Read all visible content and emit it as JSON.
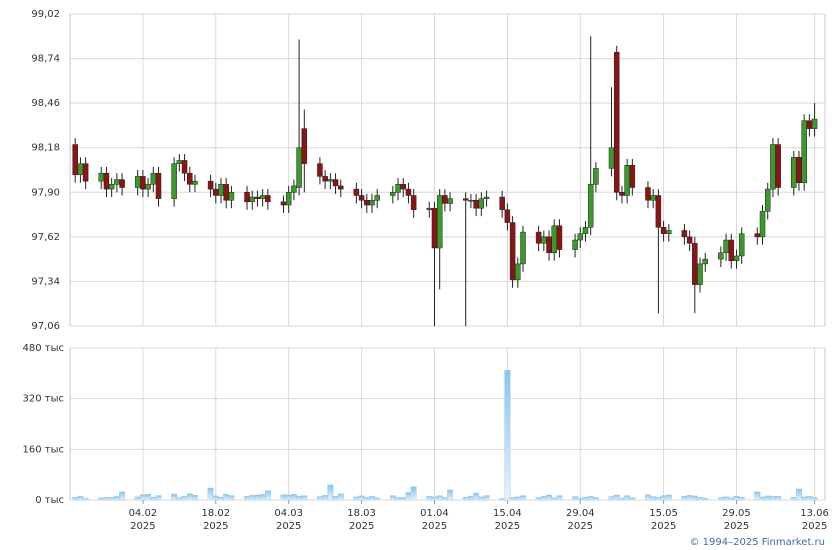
{
  "chart_data": {
    "type": "candlestick",
    "x": [
      "2025-01-22",
      "2025-01-23",
      "2025-01-24",
      "2025-01-27",
      "2025-01-28",
      "2025-01-29",
      "2025-01-30",
      "2025-01-31",
      "2025-02-03",
      "2025-02-04",
      "2025-02-05",
      "2025-02-06",
      "2025-02-07",
      "2025-02-10",
      "2025-02-11",
      "2025-02-12",
      "2025-02-13",
      "2025-02-14",
      "2025-02-17",
      "2025-02-18",
      "2025-02-19",
      "2025-02-20",
      "2025-02-21",
      "2025-02-24",
      "2025-02-25",
      "2025-02-26",
      "2025-02-27",
      "2025-02-28",
      "2025-03-03",
      "2025-03-04",
      "2025-03-05",
      "2025-03-06",
      "2025-03-07",
      "2025-03-10",
      "2025-03-11",
      "2025-03-12",
      "2025-03-13",
      "2025-03-14",
      "2025-03-17",
      "2025-03-18",
      "2025-03-19",
      "2025-03-20",
      "2025-03-21",
      "2025-03-24",
      "2025-03-25",
      "2025-03-26",
      "2025-03-27",
      "2025-03-28",
      "2025-03-31",
      "2025-04-01",
      "2025-04-02",
      "2025-04-03",
      "2025-04-04",
      "2025-04-07",
      "2025-04-08",
      "2025-04-09",
      "2025-04-10",
      "2025-04-11",
      "2025-04-14",
      "2025-04-15",
      "2025-04-16",
      "2025-04-17",
      "2025-04-18",
      "2025-04-21",
      "2025-04-22",
      "2025-04-23",
      "2025-04-24",
      "2025-04-25",
      "2025-04-28",
      "2025-04-29",
      "2025-04-30",
      "2025-05-01",
      "2025-05-02",
      "2025-05-05",
      "2025-05-06",
      "2025-05-07",
      "2025-05-08",
      "2025-05-09",
      "2025-05-12",
      "2025-05-13",
      "2025-05-14",
      "2025-05-15",
      "2025-05-16",
      "2025-05-19",
      "2025-05-20",
      "2025-05-21",
      "2025-05-22",
      "2025-05-23",
      "2025-05-26",
      "2025-05-27",
      "2025-05-28",
      "2025-05-29",
      "2025-05-30",
      "2025-06-02",
      "2025-06-03",
      "2025-06-04",
      "2025-06-05",
      "2025-06-06",
      "2025-06-09",
      "2025-06-10",
      "2025-06-11",
      "2025-06-12",
      "2025-06-13"
    ],
    "open": [
      98.2,
      98.01,
      98.08,
      97.97,
      98.02,
      97.92,
      97.95,
      97.98,
      97.93,
      98.0,
      97.92,
      97.95,
      98.02,
      97.86,
      98.08,
      98.1,
      98.02,
      97.95,
      97.97,
      97.92,
      97.88,
      97.95,
      97.85,
      97.9,
      97.84,
      97.87,
      97.86,
      97.88,
      97.84,
      97.82,
      97.9,
      97.93,
      98.3,
      98.08,
      98.0,
      97.97,
      97.98,
      97.94,
      97.92,
      97.88,
      97.85,
      97.82,
      97.85,
      97.88,
      97.9,
      97.95,
      97.92,
      97.88,
      97.79,
      97.8,
      97.55,
      97.88,
      97.83,
      97.86,
      97.85,
      97.85,
      97.8,
      97.86,
      97.87,
      97.79,
      97.71,
      97.35,
      97.45,
      97.65,
      97.58,
      97.62,
      97.52,
      97.69,
      97.54,
      97.6,
      97.64,
      97.68,
      97.95,
      98.05,
      98.78,
      97.9,
      97.88,
      98.07,
      97.93,
      97.85,
      97.88,
      97.68,
      97.64,
      97.66,
      97.62,
      97.58,
      97.32,
      97.45,
      97.48,
      97.52,
      97.6,
      97.47,
      97.5,
      97.64,
      97.62,
      97.78,
      97.92,
      98.2,
      97.93,
      98.12,
      97.96,
      98.35,
      98.3
    ],
    "high": [
      98.24,
      98.12,
      98.12,
      98.06,
      98.06,
      97.99,
      98.02,
      98.02,
      98.04,
      98.04,
      97.99,
      98.06,
      98.06,
      98.12,
      98.14,
      98.14,
      98.06,
      98.01,
      98.01,
      97.96,
      97.99,
      97.99,
      97.94,
      97.94,
      97.91,
      97.91,
      97.92,
      97.92,
      97.88,
      97.94,
      97.98,
      98.86,
      98.42,
      98.12,
      98.04,
      98.02,
      98.02,
      97.98,
      97.96,
      97.92,
      97.89,
      97.89,
      97.92,
      97.94,
      97.99,
      97.99,
      97.96,
      97.92,
      97.84,
      97.84,
      97.92,
      97.92,
      97.9,
      97.9,
      97.89,
      97.89,
      97.9,
      97.91,
      97.91,
      97.83,
      97.75,
      97.49,
      97.69,
      97.69,
      97.66,
      97.66,
      97.73,
      97.73,
      97.64,
      97.68,
      97.72,
      98.88,
      98.09,
      98.56,
      98.82,
      97.94,
      98.11,
      98.11,
      97.97,
      97.92,
      97.92,
      97.72,
      97.7,
      97.7,
      97.66,
      97.62,
      97.49,
      97.52,
      97.56,
      97.64,
      97.64,
      97.54,
      97.68,
      97.68,
      97.82,
      97.96,
      98.24,
      98.24,
      98.16,
      98.16,
      98.39,
      98.39,
      98.46
    ],
    "low": [
      97.96,
      97.96,
      97.92,
      97.92,
      97.87,
      97.87,
      97.9,
      97.88,
      97.88,
      97.87,
      97.87,
      97.9,
      97.81,
      97.81,
      98.03,
      97.97,
      97.9,
      97.9,
      97.87,
      97.83,
      97.83,
      97.8,
      97.8,
      97.79,
      97.79,
      97.81,
      97.81,
      97.79,
      97.77,
      97.77,
      97.85,
      97.88,
      97.9,
      97.95,
      97.92,
      97.92,
      97.89,
      97.87,
      97.83,
      97.8,
      97.77,
      97.77,
      97.8,
      97.83,
      97.85,
      97.87,
      97.83,
      97.74,
      97.74,
      97.06,
      97.29,
      97.78,
      97.78,
      97.06,
      97.8,
      97.75,
      97.75,
      97.81,
      97.74,
      97.66,
      97.3,
      97.3,
      97.4,
      97.53,
      97.53,
      97.47,
      97.47,
      97.49,
      97.49,
      97.55,
      97.59,
      97.63,
      97.9,
      98.0,
      97.85,
      97.83,
      97.83,
      97.88,
      97.8,
      97.8,
      97.14,
      97.59,
      97.59,
      97.57,
      97.53,
      97.14,
      97.27,
      97.4,
      97.43,
      97.47,
      97.42,
      97.42,
      97.45,
      97.57,
      97.57,
      97.73,
      97.87,
      97.88,
      97.88,
      97.91,
      97.91,
      98.25,
      98.25
    ],
    "close": [
      98.01,
      98.08,
      97.97,
      98.02,
      97.92,
      97.95,
      97.98,
      97.93,
      98.0,
      97.92,
      97.95,
      98.02,
      97.86,
      98.08,
      98.1,
      98.02,
      97.95,
      97.97,
      97.92,
      97.88,
      97.95,
      97.85,
      97.9,
      97.84,
      97.87,
      97.86,
      97.88,
      97.84,
      97.82,
      97.9,
      97.94,
      98.18,
      98.08,
      98.0,
      97.97,
      97.98,
      97.94,
      97.92,
      97.88,
      97.85,
      97.82,
      97.85,
      97.88,
      97.9,
      97.95,
      97.92,
      97.88,
      97.79,
      97.8,
      97.55,
      97.88,
      97.83,
      97.86,
      97.85,
      97.85,
      97.8,
      97.86,
      97.87,
      97.79,
      97.71,
      97.35,
      97.45,
      97.65,
      97.58,
      97.62,
      97.52,
      97.69,
      97.54,
      97.6,
      97.64,
      97.68,
      97.95,
      98.05,
      98.18,
      97.9,
      97.88,
      98.07,
      97.93,
      97.85,
      97.88,
      97.68,
      97.64,
      97.66,
      97.62,
      97.58,
      97.32,
      97.45,
      97.48,
      97.52,
      97.6,
      97.47,
      97.5,
      97.64,
      97.62,
      97.78,
      97.92,
      98.2,
      97.93,
      98.12,
      97.96,
      98.35,
      98.3,
      98.36
    ],
    "volume": [
      9000,
      12000,
      6000,
      7000,
      8000,
      9000,
      12000,
      26000,
      10000,
      17000,
      18000,
      9000,
      14000,
      19000,
      8000,
      12000,
      20000,
      15000,
      38000,
      13000,
      9000,
      18000,
      14000,
      12000,
      15000,
      16000,
      18000,
      29000,
      17000,
      16000,
      18000,
      12000,
      14000,
      11000,
      15000,
      48000,
      12000,
      20000,
      10000,
      13000,
      9000,
      12000,
      7000,
      14000,
      8000,
      8000,
      24000,
      42000,
      12000,
      10000,
      14000,
      8000,
      32000,
      9000,
      12000,
      22000,
      10000,
      14000,
      5000,
      410000,
      8000,
      10000,
      14000,
      8000,
      12000,
      16000,
      7000,
      14000,
      11000,
      6000,
      9000,
      12000,
      8000,
      11000,
      16000,
      6000,
      14000,
      8000,
      17000,
      11000,
      9000,
      14000,
      16000,
      12000,
      15000,
      13000,
      9000,
      6000,
      8000,
      10000,
      7000,
      12000,
      9000,
      26000,
      10000,
      13000,
      11000,
      12000,
      9000,
      35000,
      10000,
      12000,
      8000
    ],
    "up_color": "#3c9a2c",
    "down_color": "#8b1414",
    "volume_color": "#8cc4ec",
    "xlim": [
      "2025-01-21",
      "2025-06-15"
    ],
    "xticks": [
      {
        "value": "2025-02-04",
        "label": [
          "04.02",
          "2025"
        ]
      },
      {
        "value": "2025-02-18",
        "label": [
          "18.02",
          "2025"
        ]
      },
      {
        "value": "2025-03-04",
        "label": [
          "04.03",
          "2025"
        ]
      },
      {
        "value": "2025-03-18",
        "label": [
          "18.03",
          "2025"
        ]
      },
      {
        "value": "2025-04-01",
        "label": [
          "01.04",
          "2025"
        ]
      },
      {
        "value": "2025-04-15",
        "label": [
          "15.04",
          "2025"
        ]
      },
      {
        "value": "2025-04-29",
        "label": [
          "29.04",
          "2025"
        ]
      },
      {
        "value": "2025-05-15",
        "label": [
          "15.05",
          "2025"
        ]
      },
      {
        "value": "2025-05-29",
        "label": [
          "29.05",
          "2025"
        ]
      },
      {
        "value": "2025-06-13",
        "label": [
          "13.06",
          "2025"
        ]
      }
    ],
    "ylim": [
      97.06,
      99.02
    ],
    "yticks": [
      {
        "value": 97.06,
        "label": "97,06"
      },
      {
        "value": 97.34,
        "label": "97,34"
      },
      {
        "value": 97.62,
        "label": "97,62"
      },
      {
        "value": 97.9,
        "label": "97,90"
      },
      {
        "value": 98.18,
        "label": "98,18"
      },
      {
        "value": 98.46,
        "label": "98,46"
      },
      {
        "value": 98.74,
        "label": "98,74"
      },
      {
        "value": 99.02,
        "label": "99,02"
      }
    ],
    "volume_lim": [
      0,
      480000
    ],
    "volume_ticks": [
      {
        "value": 0,
        "label": "0 тыс"
      },
      {
        "value": 160000,
        "label": "160 тыс"
      },
      {
        "value": 320000,
        "label": "320 тыс"
      },
      {
        "value": 480000,
        "label": "480 тыс"
      }
    ],
    "grid": true,
    "credit": "© 1994–2025 Finmarket.ru"
  }
}
